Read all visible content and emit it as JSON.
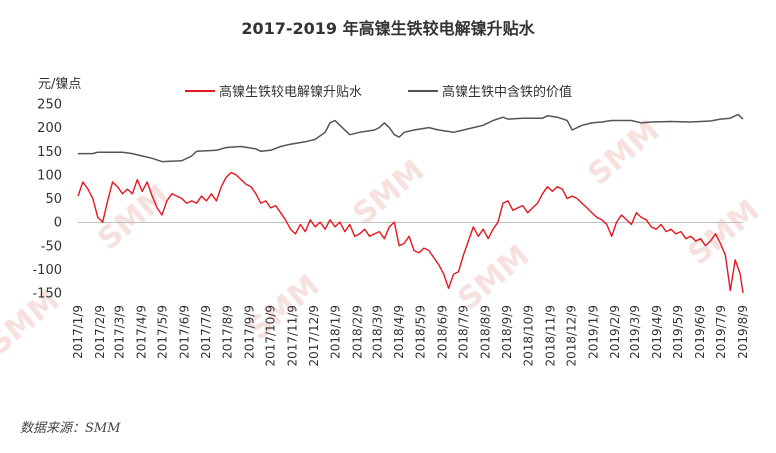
{
  "chart_data": {
    "type": "line",
    "title": "2017-2019 年高镍生铁较电解镍升贴水",
    "ylabel": "元/镍点",
    "ylim": [
      -150,
      250
    ],
    "yticks": [
      250,
      200,
      150,
      100,
      50,
      0,
      -50,
      -100,
      -150
    ],
    "grid": false,
    "legend": "top-center",
    "x_range": [
      "2017/1/9",
      "2019/8/9"
    ],
    "x_ticks": [
      "2017/1/9",
      "2017/2/9",
      "2017/3/9",
      "2017/4/9",
      "2017/5/9",
      "2017/6/9",
      "2017/7/9",
      "2017/8/9",
      "2017/9/9",
      "2017/10/9",
      "2017/11/9",
      "2017/12/9",
      "2018/1/9",
      "2018/2/9",
      "2018/3/9",
      "2018/4/9",
      "2018/5/9",
      "2018/6/9",
      "2018/7/9",
      "2018/8/9",
      "2018/9/9",
      "2018/10/9",
      "2018/11/9",
      "2018/12/9",
      "2019/1/9",
      "2019/2/9",
      "2019/3/9",
      "2019/4/9",
      "2019/5/9",
      "2019/6/9",
      "2019/7/9",
      "2019/8/9"
    ],
    "series": [
      {
        "name": "高镍生铁较电解镍升贴水",
        "color": "#e3171f",
        "points": [
          [
            "2017-01-09",
            55
          ],
          [
            "2017-01-16",
            85
          ],
          [
            "2017-01-23",
            70
          ],
          [
            "2017-01-30",
            50
          ],
          [
            "2017-02-06",
            10
          ],
          [
            "2017-02-13",
            0
          ],
          [
            "2017-02-20",
            45
          ],
          [
            "2017-02-27",
            85
          ],
          [
            "2017-03-06",
            75
          ],
          [
            "2017-03-13",
            60
          ],
          [
            "2017-03-20",
            70
          ],
          [
            "2017-03-27",
            60
          ],
          [
            "2017-04-03",
            90
          ],
          [
            "2017-04-10",
            65
          ],
          [
            "2017-04-17",
            85
          ],
          [
            "2017-04-24",
            55
          ],
          [
            "2017-05-01",
            30
          ],
          [
            "2017-05-08",
            15
          ],
          [
            "2017-05-15",
            45
          ],
          [
            "2017-05-22",
            60
          ],
          [
            "2017-05-29",
            55
          ],
          [
            "2017-06-05",
            50
          ],
          [
            "2017-06-12",
            40
          ],
          [
            "2017-06-19",
            45
          ],
          [
            "2017-06-26",
            40
          ],
          [
            "2017-07-03",
            55
          ],
          [
            "2017-07-10",
            45
          ],
          [
            "2017-07-17",
            60
          ],
          [
            "2017-07-24",
            45
          ],
          [
            "2017-07-31",
            75
          ],
          [
            "2017-08-07",
            95
          ],
          [
            "2017-08-14",
            105
          ],
          [
            "2017-08-21",
            100
          ],
          [
            "2017-08-28",
            90
          ],
          [
            "2017-09-04",
            80
          ],
          [
            "2017-09-11",
            75
          ],
          [
            "2017-09-18",
            60
          ],
          [
            "2017-09-25",
            40
          ],
          [
            "2017-10-02",
            45
          ],
          [
            "2017-10-09",
            30
          ],
          [
            "2017-10-16",
            35
          ],
          [
            "2017-10-23",
            20
          ],
          [
            "2017-10-30",
            5
          ],
          [
            "2017-11-06",
            -15
          ],
          [
            "2017-11-13",
            -25
          ],
          [
            "2017-11-20",
            -5
          ],
          [
            "2017-11-27",
            -20
          ],
          [
            "2017-12-04",
            5
          ],
          [
            "2017-12-11",
            -10
          ],
          [
            "2017-12-18",
            0
          ],
          [
            "2017-12-25",
            -15
          ],
          [
            "2018-01-01",
            5
          ],
          [
            "2018-01-08",
            -10
          ],
          [
            "2018-01-15",
            0
          ],
          [
            "2018-01-22",
            -20
          ],
          [
            "2018-01-29",
            -5
          ],
          [
            "2018-02-05",
            -30
          ],
          [
            "2018-02-12",
            -25
          ],
          [
            "2018-02-19",
            -15
          ],
          [
            "2018-02-26",
            -30
          ],
          [
            "2018-03-05",
            -25
          ],
          [
            "2018-03-12",
            -20
          ],
          [
            "2018-03-19",
            -35
          ],
          [
            "2018-03-26",
            -10
          ],
          [
            "2018-04-02",
            0
          ],
          [
            "2018-04-09",
            -50
          ],
          [
            "2018-04-16",
            -45
          ],
          [
            "2018-04-23",
            -30
          ],
          [
            "2018-04-30",
            -60
          ],
          [
            "2018-05-07",
            -65
          ],
          [
            "2018-05-14",
            -55
          ],
          [
            "2018-05-21",
            -60
          ],
          [
            "2018-05-28",
            -75
          ],
          [
            "2018-06-04",
            -90
          ],
          [
            "2018-06-11",
            -110
          ],
          [
            "2018-06-18",
            -140
          ],
          [
            "2018-06-25",
            -110
          ],
          [
            "2018-07-02",
            -105
          ],
          [
            "2018-07-09",
            -70
          ],
          [
            "2018-07-16",
            -40
          ],
          [
            "2018-07-23",
            -10
          ],
          [
            "2018-07-30",
            -30
          ],
          [
            "2018-08-06",
            -15
          ],
          [
            "2018-08-13",
            -35
          ],
          [
            "2018-08-20",
            -15
          ],
          [
            "2018-08-27",
            0
          ],
          [
            "2018-09-03",
            40
          ],
          [
            "2018-09-10",
            45
          ],
          [
            "2018-09-17",
            25
          ],
          [
            "2018-09-24",
            30
          ],
          [
            "2018-10-01",
            35
          ],
          [
            "2018-10-08",
            20
          ],
          [
            "2018-10-15",
            30
          ],
          [
            "2018-10-22",
            40
          ],
          [
            "2018-10-29",
            60
          ],
          [
            "2018-11-05",
            75
          ],
          [
            "2018-11-12",
            65
          ],
          [
            "2018-11-19",
            75
          ],
          [
            "2018-11-26",
            70
          ],
          [
            "2018-12-03",
            50
          ],
          [
            "2018-12-10",
            55
          ],
          [
            "2018-12-17",
            50
          ],
          [
            "2018-12-24",
            40
          ],
          [
            "2018-12-31",
            30
          ],
          [
            "2019-01-07",
            20
          ],
          [
            "2019-01-14",
            10
          ],
          [
            "2019-01-21",
            5
          ],
          [
            "2019-01-28",
            -5
          ],
          [
            "2019-02-04",
            -30
          ],
          [
            "2019-02-11",
            0
          ],
          [
            "2019-02-18",
            15
          ],
          [
            "2019-02-25",
            5
          ],
          [
            "2019-03-04",
            -5
          ],
          [
            "2019-03-11",
            20
          ],
          [
            "2019-03-18",
            10
          ],
          [
            "2019-03-25",
            5
          ],
          [
            "2019-04-01",
            -10
          ],
          [
            "2019-04-08",
            -15
          ],
          [
            "2019-04-15",
            -5
          ],
          [
            "2019-04-22",
            -20
          ],
          [
            "2019-04-29",
            -15
          ],
          [
            "2019-05-06",
            -25
          ],
          [
            "2019-05-13",
            -20
          ],
          [
            "2019-05-20",
            -35
          ],
          [
            "2019-05-27",
            -30
          ],
          [
            "2019-06-03",
            -40
          ],
          [
            "2019-06-10",
            -35
          ],
          [
            "2019-06-17",
            -50
          ],
          [
            "2019-06-24",
            -40
          ],
          [
            "2019-07-01",
            -25
          ],
          [
            "2019-07-08",
            -45
          ],
          [
            "2019-07-15",
            -70
          ],
          [
            "2019-07-22",
            -145
          ],
          [
            "2019-07-29",
            -80
          ],
          [
            "2019-08-05",
            -110
          ],
          [
            "2019-08-09",
            -150
          ]
        ]
      },
      {
        "name": "高镍生铁中含铁的价值",
        "color": "#555555",
        "points": [
          [
            "2017-01-09",
            145
          ],
          [
            "2017-01-30",
            145
          ],
          [
            "2017-02-06",
            148
          ],
          [
            "2017-03-13",
            148
          ],
          [
            "2017-03-27",
            145
          ],
          [
            "2017-04-10",
            140
          ],
          [
            "2017-04-24",
            135
          ],
          [
            "2017-05-08",
            128
          ],
          [
            "2017-06-05",
            130
          ],
          [
            "2017-06-19",
            140
          ],
          [
            "2017-06-26",
            150
          ],
          [
            "2017-07-24",
            152
          ],
          [
            "2017-08-07",
            158
          ],
          [
            "2017-08-28",
            160
          ],
          [
            "2017-09-18",
            155
          ],
          [
            "2017-09-25",
            150
          ],
          [
            "2017-10-09",
            152
          ],
          [
            "2017-10-23",
            160
          ],
          [
            "2017-11-06",
            165
          ],
          [
            "2017-11-27",
            170
          ],
          [
            "2017-12-11",
            175
          ],
          [
            "2017-12-25",
            190
          ],
          [
            "2018-01-01",
            210
          ],
          [
            "2018-01-08",
            215
          ],
          [
            "2018-01-15",
            205
          ],
          [
            "2018-01-29",
            185
          ],
          [
            "2018-02-12",
            190
          ],
          [
            "2018-03-05",
            195
          ],
          [
            "2018-03-12",
            200
          ],
          [
            "2018-03-19",
            210
          ],
          [
            "2018-03-26",
            200
          ],
          [
            "2018-04-02",
            185
          ],
          [
            "2018-04-09",
            180
          ],
          [
            "2018-04-16",
            190
          ],
          [
            "2018-04-30",
            195
          ],
          [
            "2018-05-21",
            200
          ],
          [
            "2018-06-04",
            195
          ],
          [
            "2018-06-25",
            190
          ],
          [
            "2018-07-09",
            195
          ],
          [
            "2018-07-23",
            200
          ],
          [
            "2018-08-06",
            205
          ],
          [
            "2018-08-20",
            215
          ],
          [
            "2018-09-03",
            222
          ],
          [
            "2018-09-10",
            218
          ],
          [
            "2018-10-01",
            220
          ],
          [
            "2018-10-29",
            220
          ],
          [
            "2018-11-05",
            225
          ],
          [
            "2018-11-19",
            222
          ],
          [
            "2018-12-03",
            215
          ],
          [
            "2018-12-10",
            195
          ],
          [
            "2018-12-24",
            205
          ],
          [
            "2019-01-07",
            210
          ],
          [
            "2019-01-21",
            212
          ],
          [
            "2019-02-04",
            215
          ],
          [
            "2019-03-04",
            215
          ],
          [
            "2019-03-18",
            210
          ],
          [
            "2019-04-01",
            212
          ],
          [
            "2019-04-29",
            213
          ],
          [
            "2019-05-27",
            212
          ],
          [
            "2019-06-24",
            214
          ],
          [
            "2019-07-08",
            218
          ],
          [
            "2019-07-22",
            220
          ],
          [
            "2019-08-02",
            228
          ],
          [
            "2019-08-09",
            218
          ]
        ]
      }
    ],
    "source": "数据来源：SMM",
    "watermark": "SMM"
  }
}
